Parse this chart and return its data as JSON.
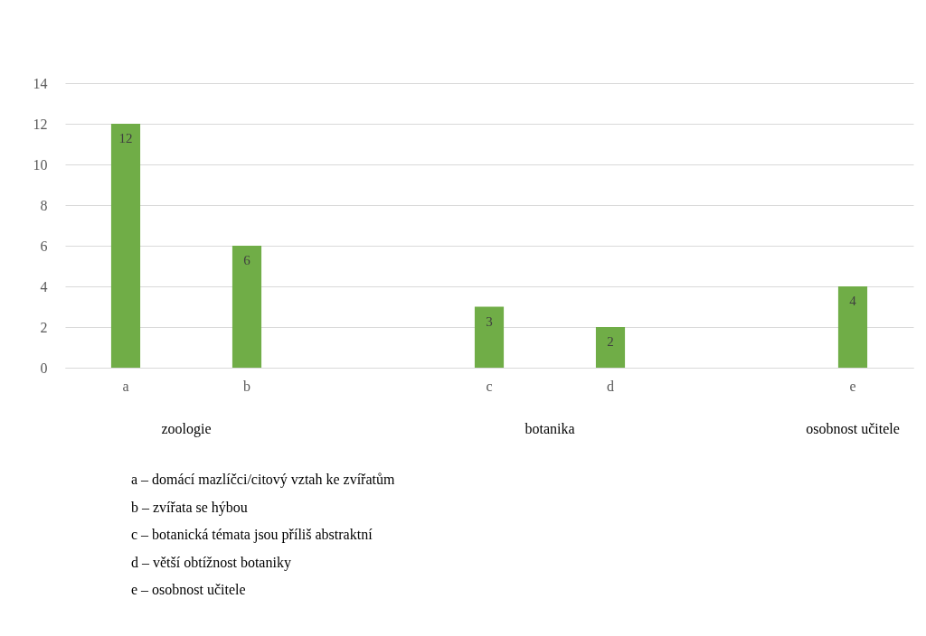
{
  "chart_data": {
    "type": "bar",
    "categories": [
      "a",
      "b",
      null,
      "c",
      "d",
      null,
      "e"
    ],
    "values": [
      12,
      6,
      null,
      3,
      2,
      null,
      4
    ],
    "color": "#70ad47",
    "ylim": [
      0,
      14
    ],
    "yticks": [
      0,
      2,
      4,
      6,
      8,
      10,
      12,
      14
    ],
    "grid": "y",
    "data_labels": true,
    "annotations": [
      "zoologie",
      "botanika",
      "osobnost učitele",
      "a – domácí mazlíčci/citový vztah ke zvířatům",
      "b – zvířata se hýbou",
      "c – botanická témata jsou příliš abstraktní",
      "d – větší obtížnost botaniky",
      "e – osobnost učitele"
    ]
  }
}
